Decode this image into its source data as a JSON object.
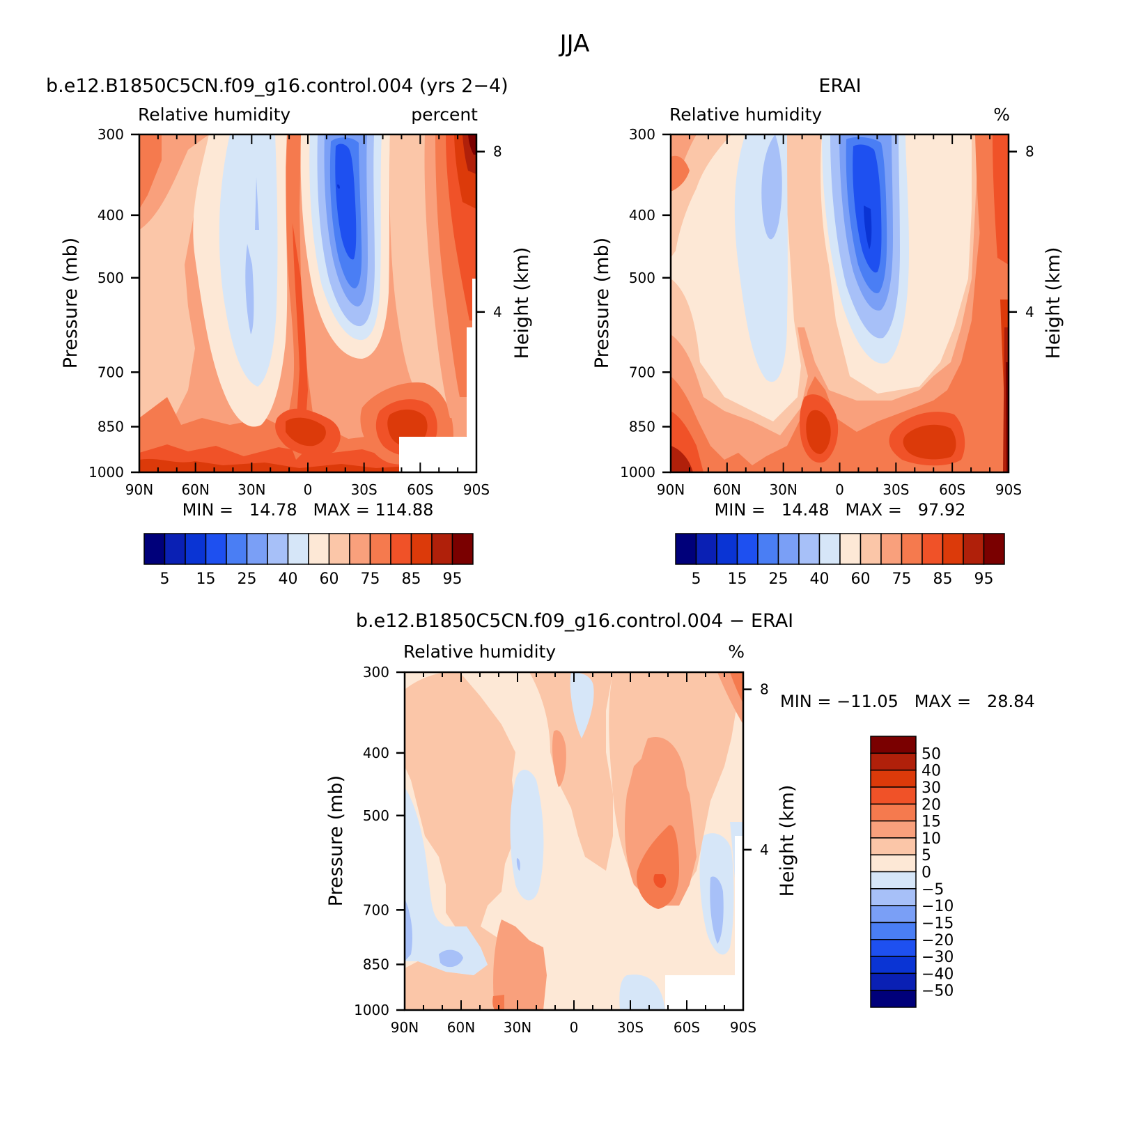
{
  "figure": {
    "title": "JJA"
  },
  "panels": [
    {
      "id": "model",
      "title": "b.e12.B1850C5CN.f09_g16.control.004 (yrs 2−4)",
      "left_label": "Relative humidity",
      "right_label": "percent",
      "minmax": "MIN =   14.78   MAX = 114.88"
    },
    {
      "id": "obs",
      "title": "ERAI",
      "left_label": "Relative humidity",
      "right_label": "%",
      "minmax": "MIN =   14.48   MAX =   97.92"
    },
    {
      "id": "diff",
      "title": "b.e12.B1850C5CN.f09_g16.control.004 − ERAI",
      "left_label": "Relative humidity",
      "right_label": "%",
      "minmax": "MIN = −11.05   MAX =   28.84"
    }
  ],
  "chart_data": [
    {
      "type": "heatmap",
      "title": "b.e12.B1850C5CN.f09_g16.control.004 (yrs 2−4)",
      "variable": "Relative humidity",
      "units": "percent",
      "xlabel": "",
      "ylabel": "Pressure (mb)",
      "y2label": "Height (km)",
      "x_ticks": [
        "90N",
        "60N",
        "30N",
        "0",
        "30S",
        "60S",
        "90S"
      ],
      "x_tick_values": [
        90,
        60,
        30,
        0,
        -30,
        -60,
        -90
      ],
      "y_ticks": [
        300,
        400,
        500,
        700,
        850,
        1000
      ],
      "y_scale": "log",
      "y_range": [
        300,
        1000
      ],
      "y2_ticks": [
        8,
        4
      ],
      "contour_levels": [
        5,
        10,
        15,
        20,
        25,
        30,
        40,
        50,
        60,
        70,
        75,
        80,
        85,
        90,
        95
      ],
      "colorbar_labels": [
        "5",
        "15",
        "25",
        "40",
        "60",
        "75",
        "85",
        "95"
      ],
      "colors": [
        "#00007a",
        "#0a20b4",
        "#0a34d4",
        "#1e50f0",
        "#4a7ef4",
        "#7a9ff6",
        "#a7c0f8",
        "#d6e6f8",
        "#fde8d6",
        "#fbc6a8",
        "#f9a07c",
        "#f57a4e",
        "#f05228",
        "#dc3a0a",
        "#b0200a",
        "#7a0000"
      ],
      "min": 14.78,
      "max": 114.88
    },
    {
      "type": "heatmap",
      "title": "ERAI",
      "variable": "Relative humidity",
      "units": "%",
      "xlabel": "",
      "ylabel": "Pressure (mb)",
      "y2label": "Height (km)",
      "x_ticks": [
        "90N",
        "60N",
        "30N",
        "0",
        "30S",
        "60S",
        "90S"
      ],
      "x_tick_values": [
        90,
        60,
        30,
        0,
        -30,
        -60,
        -90
      ],
      "y_ticks": [
        300,
        400,
        500,
        700,
        850,
        1000
      ],
      "y_scale": "log",
      "y_range": [
        300,
        1000
      ],
      "y2_ticks": [
        8,
        4
      ],
      "contour_levels": [
        5,
        10,
        15,
        20,
        25,
        30,
        40,
        50,
        60,
        70,
        75,
        80,
        85,
        90,
        95
      ],
      "colorbar_labels": [
        "5",
        "15",
        "25",
        "40",
        "60",
        "75",
        "85",
        "95"
      ],
      "colors": [
        "#00007a",
        "#0a20b4",
        "#0a34d4",
        "#1e50f0",
        "#4a7ef4",
        "#7a9ff6",
        "#a7c0f8",
        "#d6e6f8",
        "#fde8d6",
        "#fbc6a8",
        "#f9a07c",
        "#f57a4e",
        "#f05228",
        "#dc3a0a",
        "#b0200a",
        "#7a0000"
      ],
      "min": 14.48,
      "max": 97.92
    },
    {
      "type": "heatmap",
      "title": "b.e12.B1850C5CN.f09_g16.control.004 − ERAI",
      "variable": "Relative humidity",
      "units": "%",
      "xlabel": "",
      "ylabel": "Pressure (mb)",
      "y2label": "Height (km)",
      "x_ticks": [
        "90N",
        "60N",
        "30N",
        "0",
        "30S",
        "60S",
        "90S"
      ],
      "x_tick_values": [
        90,
        60,
        30,
        0,
        -30,
        -60,
        -90
      ],
      "y_ticks": [
        300,
        400,
        500,
        700,
        850,
        1000
      ],
      "y_scale": "log",
      "y_range": [
        300,
        1000
      ],
      "y2_ticks": [
        8,
        4
      ],
      "contour_levels": [
        -50,
        -40,
        -30,
        -20,
        -15,
        -10,
        -5,
        0,
        5,
        10,
        15,
        20,
        30,
        40,
        50
      ],
      "colorbar_labels": [
        "50",
        "40",
        "30",
        "20",
        "15",
        "10",
        "5",
        "0",
        "−5",
        "−10",
        "−15",
        "−20",
        "−30",
        "−40",
        "−50"
      ],
      "colors": [
        "#7a0000",
        "#b0200a",
        "#dc3a0a",
        "#f05228",
        "#f57a4e",
        "#f9a07c",
        "#fbc6a8",
        "#fde8d6",
        "#d6e6f8",
        "#a7c0f8",
        "#7a9ff6",
        "#4a7ef4",
        "#1e50f0",
        "#0a34d4",
        "#0a20b4",
        "#00007a"
      ],
      "min": -11.05,
      "max": 28.84
    }
  ]
}
